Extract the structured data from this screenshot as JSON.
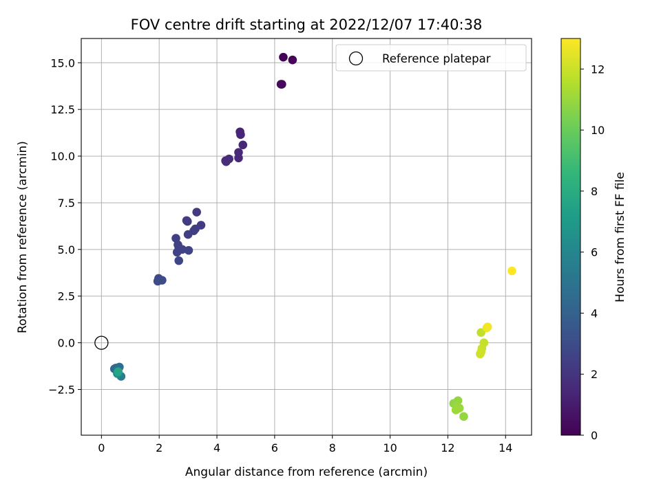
{
  "chart_data": {
    "type": "scatter",
    "title": "FOV centre drift starting at 2022/12/07 17:40:38",
    "xlabel": "Angular distance from reference (arcmin)",
    "ylabel": "Rotation from reference (arcmin)",
    "xlim": [
      -0.7,
      14.9
    ],
    "ylim": [
      -4.95,
      16.3
    ],
    "x_ticks": [
      0,
      2,
      4,
      6,
      8,
      10,
      12,
      14
    ],
    "x_tick_labels": [
      "0",
      "2",
      "4",
      "6",
      "8",
      "10",
      "12",
      "14"
    ],
    "y_ticks": [
      -2.5,
      0.0,
      2.5,
      5.0,
      7.5,
      10.0,
      12.5,
      15.0
    ],
    "y_tick_labels": [
      "−2.5",
      "0.0",
      "2.5",
      "5.0",
      "7.5",
      "10.0",
      "12.5",
      "15.0"
    ],
    "grid": true,
    "legend": {
      "placement": "top-right",
      "entries": [
        {
          "label": "Reference platepar",
          "marker": "open-circle"
        }
      ]
    },
    "reference_point": {
      "x": 0,
      "y": 0
    },
    "colorbar": {
      "label": "Hours from first FF file",
      "range": [
        0,
        13
      ],
      "ticks": [
        0,
        2,
        4,
        6,
        8,
        10,
        12
      ],
      "tick_labels": [
        "0",
        "2",
        "4",
        "6",
        "8",
        "10",
        "12"
      ],
      "colormap": "viridis"
    },
    "points": [
      {
        "x": 6.3,
        "y": 15.3,
        "h": 0.1
      },
      {
        "x": 6.62,
        "y": 15.15,
        "h": 0.2
      },
      {
        "x": 6.22,
        "y": 13.85,
        "h": 0.3
      },
      {
        "x": 6.25,
        "y": 13.85,
        "h": 0.35
      },
      {
        "x": 4.8,
        "y": 11.3,
        "h": 1.3
      },
      {
        "x": 4.82,
        "y": 11.15,
        "h": 1.35
      },
      {
        "x": 4.9,
        "y": 10.6,
        "h": 1.4
      },
      {
        "x": 4.75,
        "y": 10.2,
        "h": 1.45
      },
      {
        "x": 4.75,
        "y": 9.9,
        "h": 1.5
      },
      {
        "x": 4.3,
        "y": 9.75,
        "h": 1.55
      },
      {
        "x": 4.42,
        "y": 9.85,
        "h": 1.6
      },
      {
        "x": 4.32,
        "y": 9.7,
        "h": 1.65
      },
      {
        "x": 3.3,
        "y": 7.0,
        "h": 2.2
      },
      {
        "x": 3.45,
        "y": 6.3,
        "h": 2.25
      },
      {
        "x": 2.95,
        "y": 6.55,
        "h": 2.3
      },
      {
        "x": 2.98,
        "y": 6.5,
        "h": 2.3
      },
      {
        "x": 3.25,
        "y": 6.1,
        "h": 2.35
      },
      {
        "x": 3.2,
        "y": 6.0,
        "h": 2.4
      },
      {
        "x": 3.0,
        "y": 5.8,
        "h": 2.4
      },
      {
        "x": 2.58,
        "y": 5.6,
        "h": 2.45
      },
      {
        "x": 2.65,
        "y": 5.25,
        "h": 2.5
      },
      {
        "x": 2.68,
        "y": 5.1,
        "h": 2.55
      },
      {
        "x": 2.8,
        "y": 5.0,
        "h": 2.6
      },
      {
        "x": 2.62,
        "y": 4.85,
        "h": 2.6
      },
      {
        "x": 3.02,
        "y": 4.95,
        "h": 2.65
      },
      {
        "x": 2.68,
        "y": 4.4,
        "h": 2.7
      },
      {
        "x": 1.98,
        "y": 3.45,
        "h": 2.9
      },
      {
        "x": 1.95,
        "y": 3.3,
        "h": 2.95
      },
      {
        "x": 2.1,
        "y": 3.35,
        "h": 3.0
      },
      {
        "x": 0.45,
        "y": -1.4,
        "h": 4.3
      },
      {
        "x": 0.5,
        "y": -1.35,
        "h": 4.5
      },
      {
        "x": 0.62,
        "y": -1.3,
        "h": 4.7
      },
      {
        "x": 0.55,
        "y": -1.5,
        "h": 5.0
      },
      {
        "x": 0.68,
        "y": -1.8,
        "h": 5.5
      },
      {
        "x": 0.55,
        "y": -1.65,
        "h": 6.5
      },
      {
        "x": 0.58,
        "y": -1.55,
        "h": 7.6
      },
      {
        "x": 12.2,
        "y": -3.25,
        "h": 10.8
      },
      {
        "x": 12.35,
        "y": -3.1,
        "h": 10.9
      },
      {
        "x": 12.3,
        "y": -3.4,
        "h": 11.0
      },
      {
        "x": 12.4,
        "y": -3.5,
        "h": 11.05
      },
      {
        "x": 12.28,
        "y": -3.6,
        "h": 11.1
      },
      {
        "x": 12.55,
        "y": -3.95,
        "h": 10.9
      },
      {
        "x": 13.15,
        "y": 0.55,
        "h": 11.8
      },
      {
        "x": 13.25,
        "y": 0.0,
        "h": 11.9
      },
      {
        "x": 13.18,
        "y": -0.3,
        "h": 12.0
      },
      {
        "x": 13.15,
        "y": -0.5,
        "h": 12.0
      },
      {
        "x": 13.12,
        "y": -0.6,
        "h": 12.1
      },
      {
        "x": 13.35,
        "y": 0.8,
        "h": 12.6
      },
      {
        "x": 13.38,
        "y": 0.85,
        "h": 12.8
      },
      {
        "x": 14.22,
        "y": 3.85,
        "h": 13.0
      }
    ]
  }
}
